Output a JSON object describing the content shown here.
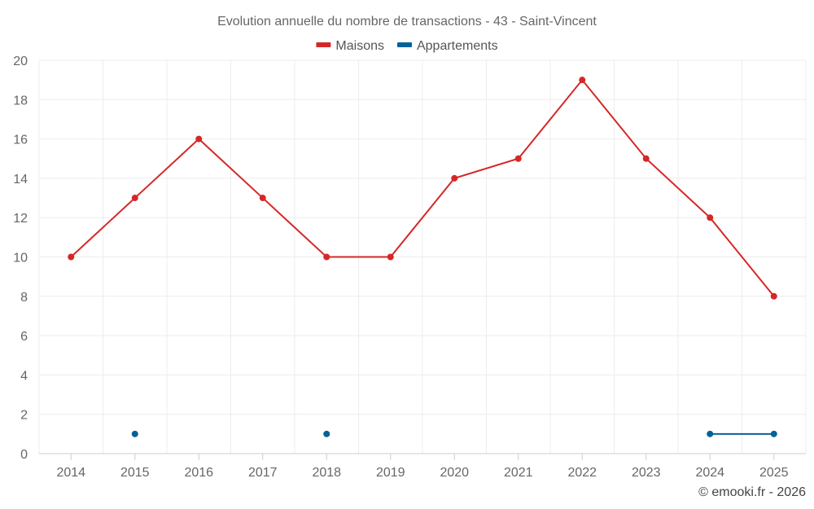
{
  "chart_data": {
    "type": "line",
    "title": "Evolution annuelle du nombre de transactions - 43 - Saint-Vincent",
    "categories": [
      "2014",
      "2015",
      "2016",
      "2017",
      "2018",
      "2019",
      "2020",
      "2021",
      "2022",
      "2023",
      "2024",
      "2025"
    ],
    "ylim": [
      0,
      20
    ],
    "yticks": [
      0,
      2,
      4,
      6,
      8,
      10,
      12,
      14,
      16,
      18,
      20
    ],
    "grid": true,
    "legend_position": "top-center",
    "series": [
      {
        "name": "Maisons",
        "color": "#d62728",
        "values": [
          10,
          13,
          16,
          13,
          10,
          10,
          14,
          15,
          19,
          15,
          12,
          8
        ]
      },
      {
        "name": "Appartements",
        "color": "#04629a",
        "values": [
          null,
          1,
          null,
          null,
          1,
          null,
          null,
          null,
          null,
          null,
          1,
          1
        ]
      }
    ]
  },
  "credit": "© emooki.fr - 2026"
}
